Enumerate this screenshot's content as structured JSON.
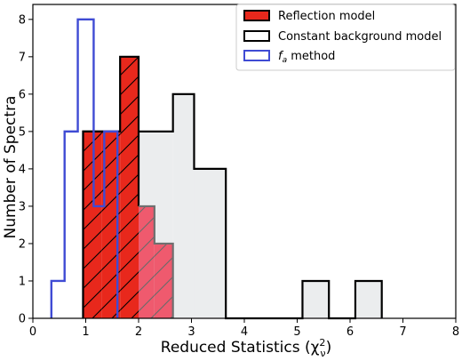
{
  "chart_data": {
    "type": "histogram",
    "xlabel": "Reduced Statistics (χ²ν)",
    "xlabel_main": "Reduced Statistics (",
    "xlabel_chi": "χ",
    "xlabel_sup": "2",
    "xlabel_sub": "ν",
    "xlabel_close": ")",
    "ylabel": "Number of Spectra",
    "xlim": [
      0,
      8
    ],
    "ylim": [
      0,
      8.4
    ],
    "xticks": [
      "0",
      "1",
      "2",
      "3",
      "4",
      "5",
      "6",
      "7",
      "8"
    ],
    "yticks": [
      "0",
      "1",
      "2",
      "3",
      "4",
      "5",
      "6",
      "7",
      "8"
    ],
    "legend_position": "top-right",
    "series": [
      {
        "name": "Reflection model",
        "style": "filled",
        "edges": [
          0.95,
          1.3,
          1.65,
          2.0,
          2.3,
          2.65
        ],
        "counts": [
          5,
          5,
          7,
          3,
          2
        ],
        "bar_colors": [
          "#e8281c",
          "#e8281c",
          "#e8281c",
          "#ef5a6e",
          "#ef5a6e"
        ],
        "edge_color": "#000000",
        "hatch": "/"
      },
      {
        "name": "Constant background model",
        "style": "outline-fill",
        "edges": [
          0.95,
          1.95,
          2.65,
          3.05,
          3.65,
          4.65,
          5.1,
          5.6,
          6.1,
          6.6
        ],
        "counts": [
          5,
          5,
          6,
          4,
          0,
          0,
          1,
          0,
          1
        ],
        "fill_color": "#ebedee",
        "edge_color": "#000000"
      },
      {
        "name": "f_a method",
        "label_main": "f",
        "label_sub": "a",
        "label_rest": " method",
        "style": "step",
        "edges": [
          0.35,
          0.6,
          0.85,
          1.15,
          1.35,
          1.6
        ],
        "counts": [
          1,
          5,
          8,
          3,
          5
        ],
        "edge_color": "#3f4bd4"
      }
    ]
  }
}
